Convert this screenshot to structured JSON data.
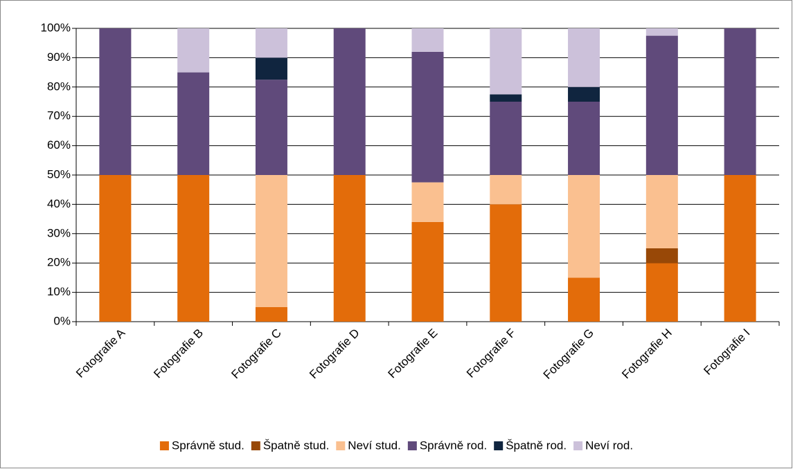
{
  "chart_data": {
    "type": "stacked_bar",
    "categories": [
      "Fotografie A",
      "Fotografie B",
      "Fotografie C",
      "Fotografie D",
      "Fotografie E",
      "Fotografie F",
      "Fotografie G",
      "Fotografie H",
      "Fotografie I"
    ],
    "series": [
      {
        "name": "Správně stud.",
        "color": "#e36c0a",
        "values": [
          50,
          50,
          5,
          50,
          34,
          40,
          15,
          20,
          50
        ]
      },
      {
        "name": "Špatně stud.",
        "color": "#984807",
        "values": [
          0,
          0,
          0,
          0,
          0,
          0,
          0,
          5,
          0
        ]
      },
      {
        "name": "Neví stud.",
        "color": "#fac090",
        "values": [
          0,
          0,
          45,
          0,
          13.5,
          10,
          35,
          25,
          0
        ]
      },
      {
        "name": "Správně rod.",
        "color": "#604a7b",
        "values": [
          50,
          35,
          32.5,
          50,
          44.5,
          25,
          25,
          47.5,
          50
        ]
      },
      {
        "name": "Špatně rod.",
        "color": "#10253f",
        "values": [
          0,
          0,
          7.5,
          0,
          0,
          2.5,
          5,
          0,
          0
        ]
      },
      {
        "name": "Neví rod.",
        "color": "#ccc1da",
        "values": [
          0,
          15,
          10,
          0,
          8,
          22.5,
          20,
          2.5,
          0
        ]
      }
    ],
    "ylim": [
      0,
      100
    ],
    "yticks": [
      {
        "value": 0,
        "label": "0%"
      },
      {
        "value": 10,
        "label": "10%"
      },
      {
        "value": 20,
        "label": "20%"
      },
      {
        "value": 30,
        "label": "30%"
      },
      {
        "value": 40,
        "label": "40%"
      },
      {
        "value": 50,
        "label": "50%"
      },
      {
        "value": 60,
        "label": "60%"
      },
      {
        "value": 70,
        "label": "70%"
      },
      {
        "value": 80,
        "label": "80%"
      },
      {
        "value": 90,
        "label": "90%"
      },
      {
        "value": 100,
        "label": "100%"
      }
    ],
    "grid": true,
    "legend": "bottom"
  }
}
